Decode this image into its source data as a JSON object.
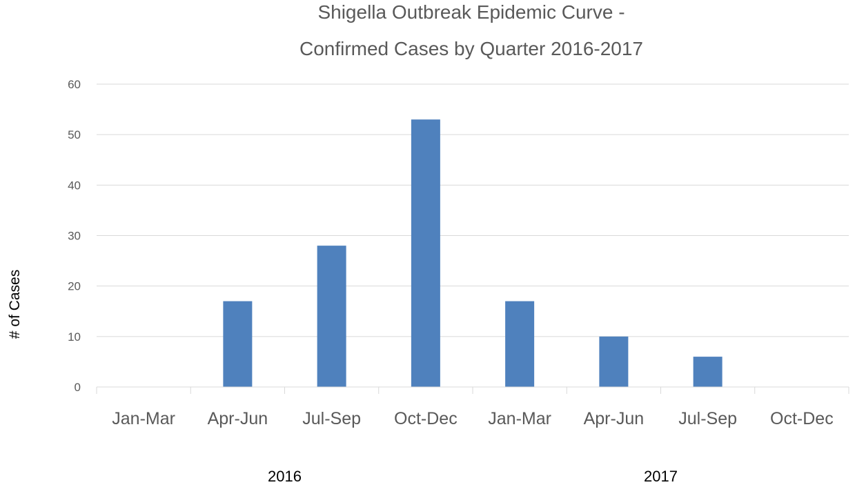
{
  "chart_data": {
    "type": "bar",
    "title_lines": [
      "Shigella Outbreak Epidemic Curve -",
      "Confirmed Cases by Quarter 2016-2017"
    ],
    "ylabel": "# of Cases",
    "xlabel": "",
    "ylim": [
      0,
      60
    ],
    "yticks": [
      "0",
      "10",
      "20",
      "30",
      "40",
      "50",
      "60"
    ],
    "categories": [
      "Jan-Mar",
      "Apr-Jun",
      "Jul-Sep",
      "Oct-Dec",
      "Jan-Mar",
      "Apr-Jun",
      "Jul-Sep",
      "Oct-Dec"
    ],
    "groups": [
      {
        "label": "2016",
        "categories": [
          "Jan-Mar",
          "Apr-Jun",
          "Jul-Sep",
          "Oct-Dec"
        ]
      },
      {
        "label": "2017",
        "categories": [
          "Jan-Mar",
          "Apr-Jun",
          "Jul-Sep",
          "Oct-Dec"
        ]
      }
    ],
    "values": [
      0,
      17,
      28,
      53,
      17,
      10,
      6,
      0
    ],
    "grid": true,
    "legend": "none",
    "bar_color": "#4F81BD",
    "grid_color": "#D9D9D9"
  }
}
